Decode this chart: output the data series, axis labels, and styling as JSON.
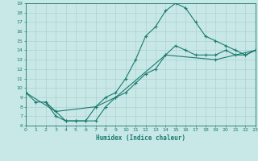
{
  "xlabel": "Humidex (Indice chaleur)",
  "xlim": [
    0,
    23
  ],
  "ylim": [
    6,
    19
  ],
  "yticks": [
    6,
    7,
    8,
    9,
    10,
    11,
    12,
    13,
    14,
    15,
    16,
    17,
    18,
    19
  ],
  "xticks": [
    0,
    1,
    2,
    3,
    4,
    5,
    6,
    7,
    8,
    9,
    10,
    11,
    12,
    13,
    14,
    15,
    16,
    17,
    18,
    19,
    20,
    21,
    22,
    23
  ],
  "bg_color": "#c8e8e8",
  "line_color": "#1a7a6e",
  "grid_color": "#b0d0d0",
  "line1_x": [
    0,
    1,
    2,
    3,
    4,
    5,
    6,
    7,
    8,
    9,
    10,
    11,
    12,
    13,
    14,
    15,
    16,
    17,
    18,
    19,
    20,
    21,
    22,
    23
  ],
  "line1_y": [
    9.5,
    8.5,
    8.5,
    7.5,
    6.5,
    6.5,
    6.5,
    8.0,
    9.0,
    9.5,
    11.0,
    13.0,
    15.5,
    16.5,
    18.2,
    19.0,
    18.5,
    17.0,
    15.5,
    15.0,
    14.5,
    14.0,
    13.5,
    14.0
  ],
  "line2_x": [
    2,
    3,
    4,
    5,
    6,
    7,
    8,
    9,
    10,
    11,
    12,
    13,
    14,
    15,
    16,
    17,
    18,
    19,
    20,
    21,
    22,
    23
  ],
  "line2_y": [
    8.5,
    7.0,
    6.5,
    6.5,
    6.5,
    6.5,
    8.0,
    9.0,
    9.5,
    10.5,
    11.5,
    12.0,
    13.5,
    14.5,
    14.0,
    13.5,
    13.5,
    13.5,
    14.0,
    13.5,
    13.5,
    14.0
  ],
  "line3_x": [
    0,
    3,
    7,
    9,
    14,
    19,
    23
  ],
  "line3_y": [
    9.5,
    7.5,
    8.0,
    9.0,
    13.5,
    13.0,
    14.0
  ]
}
